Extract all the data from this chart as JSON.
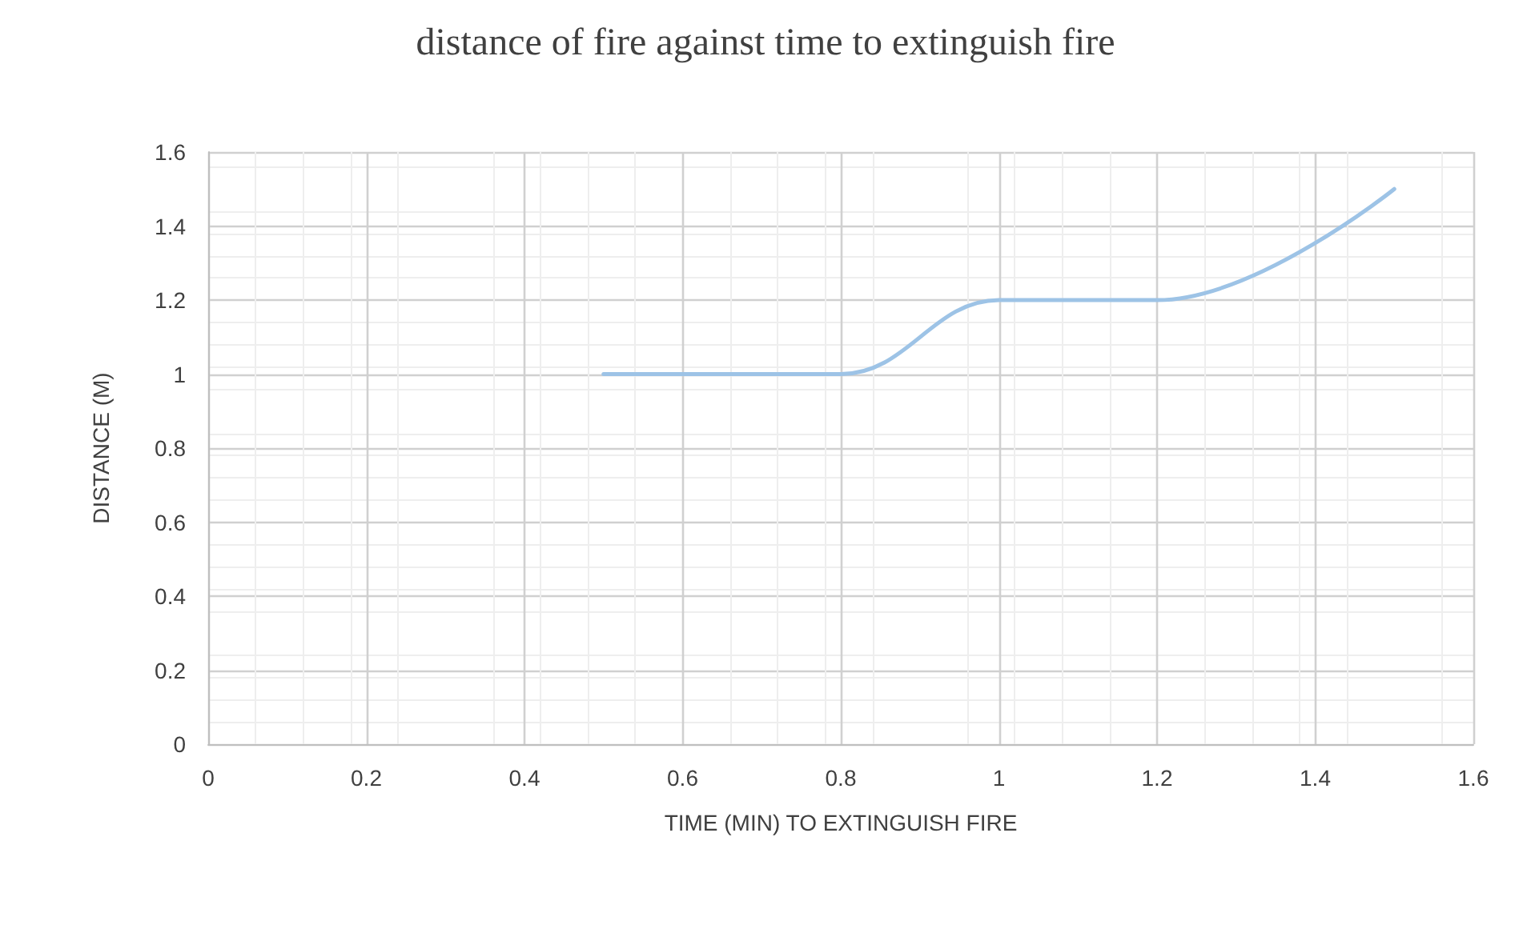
{
  "chart_data": {
    "type": "line",
    "title": "distance of fire against time to extinguish fire",
    "xlabel": "TIME (MIN) TO EXTINGUISH FIRE",
    "ylabel": "DISTANCE (M)",
    "series": [
      {
        "x": [
          0.5,
          0.8,
          1,
          1.2,
          1.5
        ],
        "values": [
          1,
          1,
          1.2,
          1.2,
          1.5
        ],
        "color": "#9dc3e6"
      }
    ],
    "xlim": [
      0,
      1.6
    ],
    "xticks": [
      0,
      0.2,
      0.4,
      0.6,
      0.8,
      1,
      1.2,
      1.4,
      1.6
    ],
    "ylim": [
      0,
      1.6
    ],
    "yticks": [
      0,
      0.2,
      0.4,
      0.6,
      0.8,
      1,
      1.2,
      1.4,
      1.6
    ],
    "grid": true,
    "marker": "none",
    "line_style": "solid"
  }
}
